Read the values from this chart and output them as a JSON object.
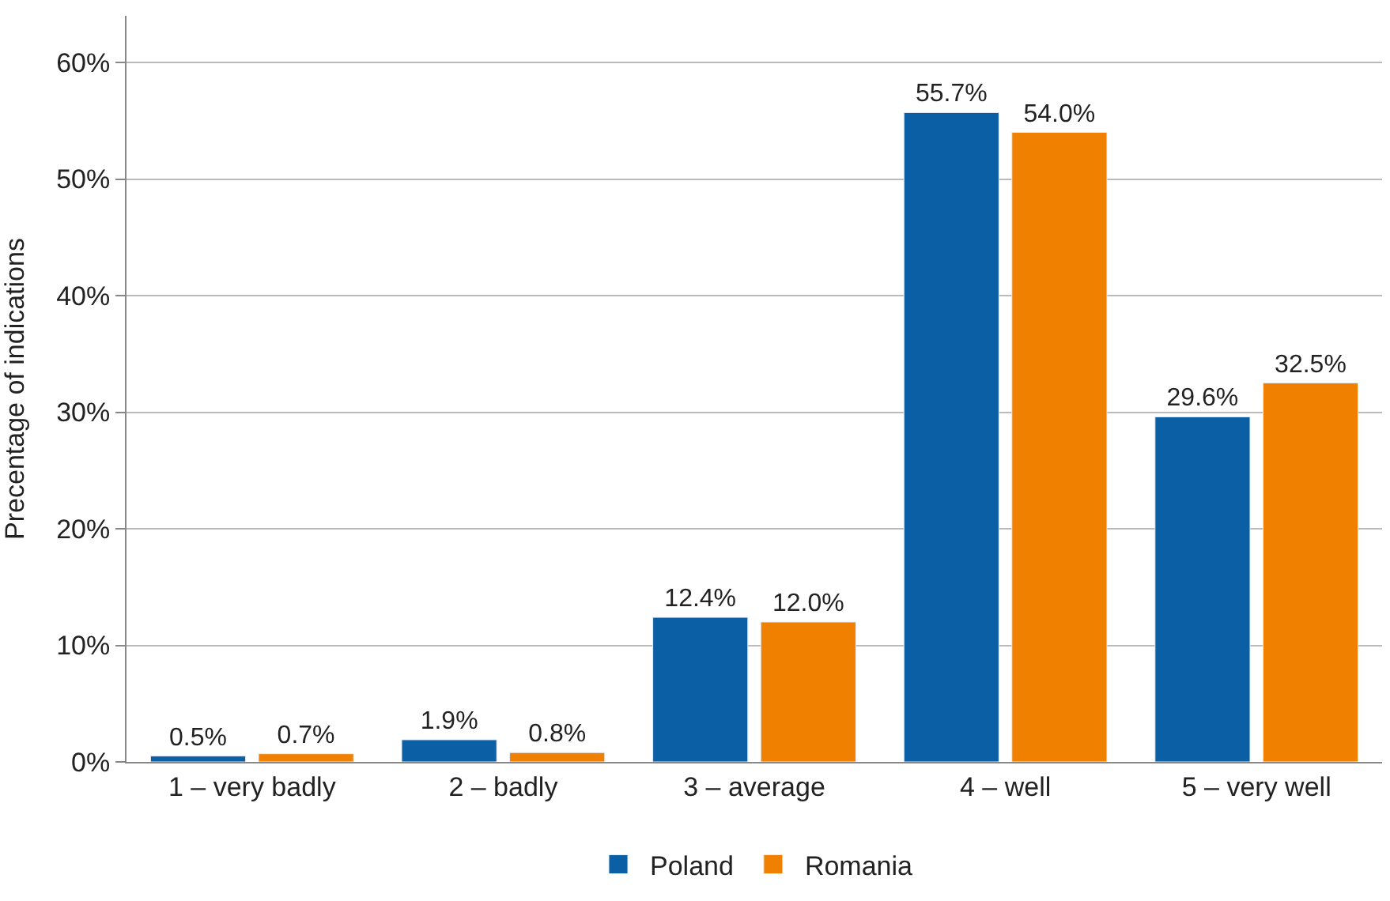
{
  "chart_data": {
    "type": "bar",
    "ylabel": "Precentage of indications",
    "categories": [
      "1 – very badly",
      "2 – badly",
      "3 – average",
      "4 – well",
      "5 – very well"
    ],
    "series": [
      {
        "name": "Poland",
        "color": "#0b5fa5",
        "values": [
          0.5,
          1.9,
          12.4,
          55.7,
          29.6
        ],
        "value_labels": [
          "0.5%",
          "1.9%",
          "12.4%",
          "55.7%",
          "29.6%"
        ]
      },
      {
        "name": "Romania",
        "color": "#f08000",
        "values": [
          0.7,
          0.8,
          12.0,
          54.0,
          32.5
        ],
        "value_labels": [
          "0.7%",
          "0.8%",
          "12.0%",
          "54.0%",
          "32.5%"
        ]
      }
    ],
    "ylim": [
      0,
      64
    ],
    "yticks": [
      {
        "value": 0,
        "label": "0%"
      },
      {
        "value": 10,
        "label": "10%"
      },
      {
        "value": 20,
        "label": "20%"
      },
      {
        "value": 30,
        "label": "30%"
      },
      {
        "value": 40,
        "label": "40%"
      },
      {
        "value": 50,
        "label": "50%"
      },
      {
        "value": 60,
        "label": "60%"
      }
    ],
    "grid": "y",
    "legend": "bottom"
  }
}
